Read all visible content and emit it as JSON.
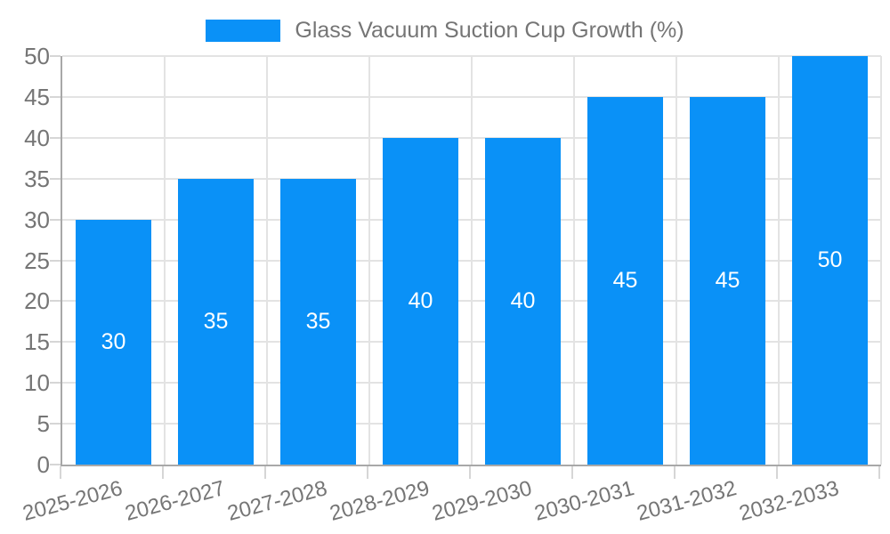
{
  "chart_data": {
    "type": "bar",
    "title": "",
    "legend": "Glass Vacuum Suction Cup Growth (%)",
    "legend_position": "top",
    "categories": [
      "2025-2026",
      "2026-2027",
      "2027-2028",
      "2028-2029",
      "2029-2030",
      "2030-2031",
      "2031-2032",
      "2032-2033"
    ],
    "values": [
      30,
      35,
      35,
      40,
      40,
      45,
      45,
      50
    ],
    "bar_value_labels": [
      "30",
      "35",
      "35",
      "40",
      "40",
      "45",
      "45",
      "50"
    ],
    "xlabel": "",
    "ylabel": "",
    "ylim": [
      0,
      50
    ],
    "yticks": [
      0,
      5,
      10,
      15,
      20,
      25,
      30,
      35,
      40,
      45,
      50
    ],
    "grid": true,
    "x_label_rotation_deg": -15,
    "colors": {
      "bar": "#0a91f7",
      "axis_text": "#757575",
      "value_text": "#ffffff",
      "grid": "#e3e3e3",
      "axis_line": "#a8a8a8",
      "tick_mark": "#d6d6d6",
      "background": "#ffffff"
    }
  }
}
